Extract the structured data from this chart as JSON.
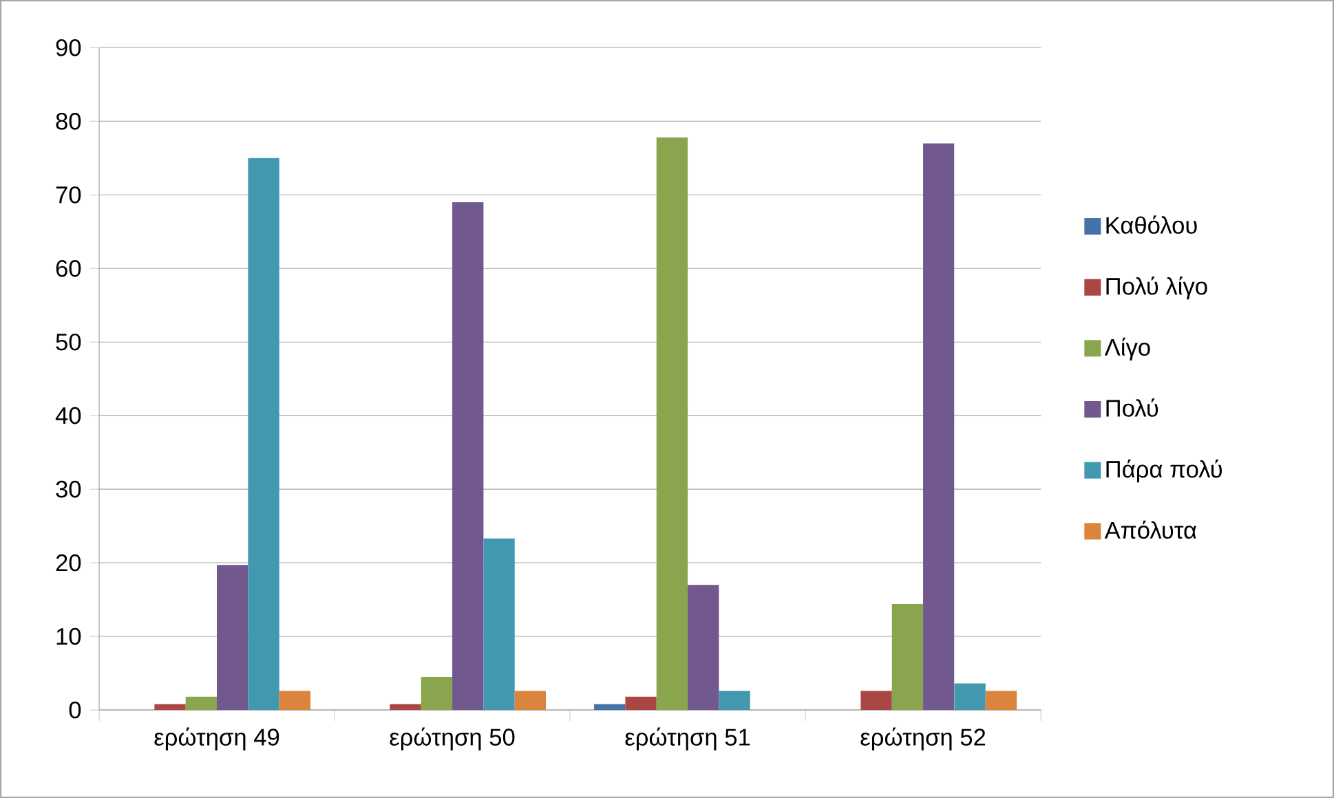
{
  "chart_data": {
    "type": "bar",
    "categories": [
      "ερώτηση 49",
      "ερώτηση 50",
      "ερώτηση 51",
      "ερώτηση 52"
    ],
    "series": [
      {
        "name": "Καθόλου",
        "color": "#4572a7",
        "values": [
          0,
          0,
          0.8,
          0
        ]
      },
      {
        "name": "Πολύ λίγο",
        "color": "#aa4643",
        "values": [
          0.8,
          0.8,
          1.8,
          2.6
        ]
      },
      {
        "name": "Λίγο",
        "color": "#89a54e",
        "values": [
          1.8,
          4.5,
          77.8,
          14.4
        ]
      },
      {
        "name": "Πολύ",
        "color": "#71588f",
        "values": [
          19.7,
          69,
          17,
          77
        ]
      },
      {
        "name": "Πάρα πολύ",
        "color": "#4198af",
        "values": [
          75,
          23.3,
          2.6,
          3.6
        ]
      },
      {
        "name": "Απόλυτα",
        "color": "#db843d",
        "values": [
          2.6,
          2.6,
          0,
          2.6
        ]
      }
    ],
    "ylim": [
      0,
      90
    ],
    "yticks": [
      0,
      10,
      20,
      30,
      40,
      50,
      60,
      70,
      80,
      90
    ],
    "grid": "y",
    "legend": "right"
  }
}
